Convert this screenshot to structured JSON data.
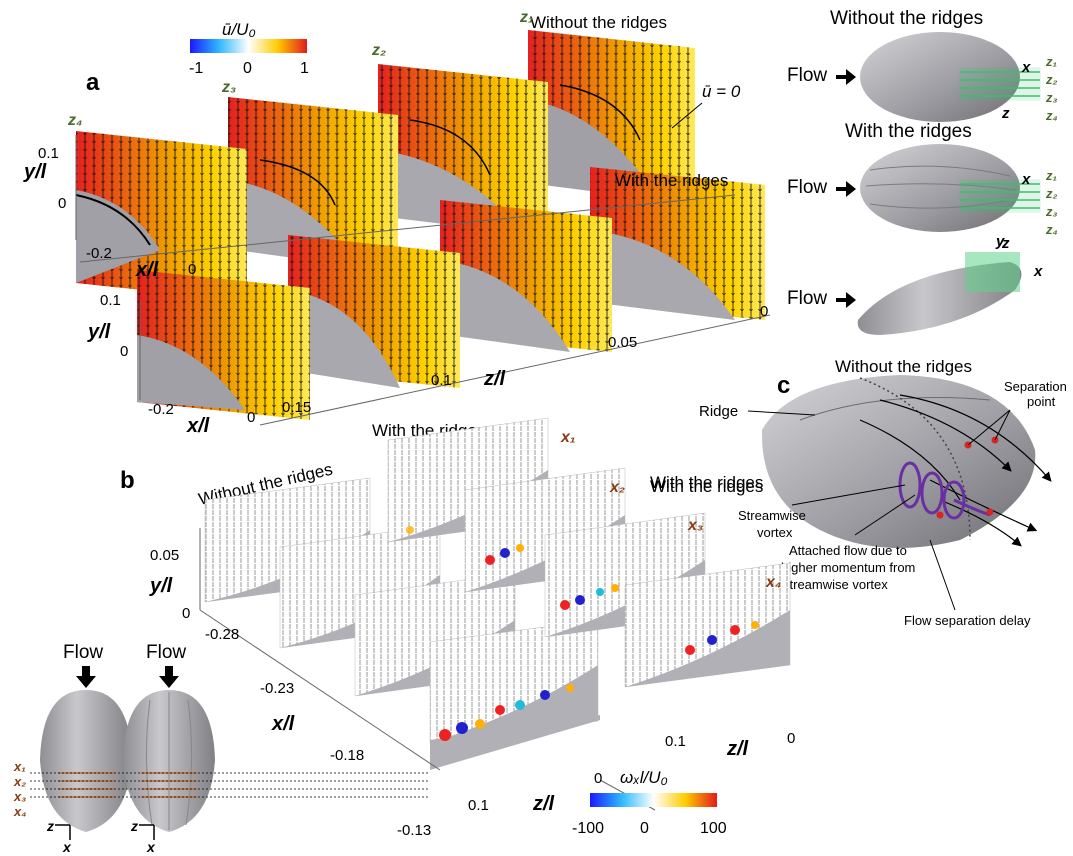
{
  "panel_letters": {
    "a": "a",
    "b": "b",
    "c": "c"
  },
  "colorbar_u": {
    "label": "ū/U₀",
    "ticks": [
      "-1",
      "0",
      "1"
    ]
  },
  "colorbar_w": {
    "label": "ωₓl/U₀",
    "ticks": [
      "-100",
      "0",
      "100"
    ]
  },
  "panel_a": {
    "top_row_label": "Without the ridges",
    "bottom_row_label": "With the ridges",
    "zero_line_label": "ū = 0",
    "slice_labels": [
      "z₁",
      "z₂",
      "z₃",
      "z₄"
    ],
    "y_axis_label": "y/l",
    "y_ticks": [
      "0.1",
      "0"
    ],
    "x_axis_label": "x/l",
    "x_ticks": [
      "-0.2",
      "0"
    ],
    "z_axis_label": "z/l",
    "z_ticks": [
      "0.15",
      "0.1",
      "0.05",
      "0"
    ]
  },
  "panel_b": {
    "left_row_label": "Without the ridges",
    "top_label": "With the ridges",
    "right_label": "With the ridges",
    "slice_labels": [
      "x₁",
      "x₂",
      "x₃",
      "x₄"
    ],
    "y_axis_label": "y/l",
    "y_ticks": [
      "0.05",
      "0"
    ],
    "x_axis_label": "x/l",
    "x_ticks": [
      "-0.28",
      "-0.23",
      "-0.18",
      "-0.13"
    ],
    "z_axis_label": "z/l",
    "z_ticks_right": [
      "0.1",
      "0"
    ],
    "z_ticks_bottom": [
      "0",
      "0.1"
    ]
  },
  "schematic_right": {
    "title_top": "Without the ridges",
    "title_mid": "With the ridges",
    "flow_label": "Flow",
    "z_labels": [
      "z₁",
      "z₂",
      "z₃",
      "z₄"
    ],
    "axis_x": "x",
    "axis_z": "z",
    "axis_y": "y"
  },
  "schematic_bottom_left": {
    "flow_label": "Flow",
    "x_labels": [
      "x₁",
      "x₂",
      "x₃",
      "x₄"
    ],
    "axis_z": "z",
    "axis_x": "x"
  },
  "panel_c": {
    "title": "Without the ridges",
    "ridge": "Ridge",
    "separation_point": [
      "Separation",
      "point"
    ],
    "with_ridges": "With the ridges",
    "streamwise_vortex": [
      "Streamwise",
      "vortex"
    ],
    "attached_flow": [
      "Attached flow due to",
      "higher momentum from",
      "streamwise vortex"
    ],
    "separation_delay": "Flow separation delay"
  }
}
